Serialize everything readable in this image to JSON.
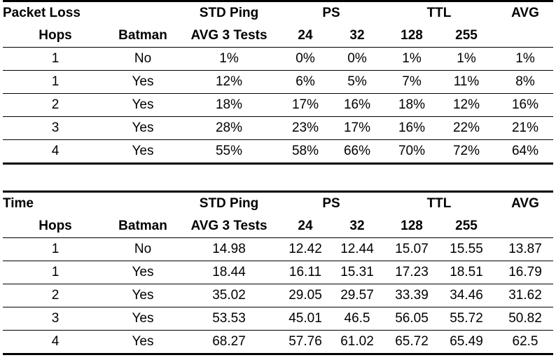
{
  "tables": [
    {
      "title": "Packet Loss",
      "header1": {
        "std_ping": "STD Ping",
        "ps": "PS",
        "ttl": "TTL",
        "avg": "AVG"
      },
      "header2": {
        "hops": "Hops",
        "batman": "Batman",
        "avg3": "AVG 3 Tests",
        "ps24": "24",
        "ps32": "32",
        "ttl128": "128",
        "ttl255": "255"
      },
      "rows": [
        {
          "hops": "1",
          "batman": "No",
          "std": "1%",
          "ps24": "0%",
          "ps32": "0%",
          "ttl128": "1%",
          "ttl255": "1%",
          "avg": "1%"
        },
        {
          "hops": "1",
          "batman": "Yes",
          "std": "12%",
          "ps24": "6%",
          "ps32": "5%",
          "ttl128": "7%",
          "ttl255": "11%",
          "avg": "8%"
        },
        {
          "hops": "2",
          "batman": "Yes",
          "std": "18%",
          "ps24": "17%",
          "ps32": "16%",
          "ttl128": "18%",
          "ttl255": "12%",
          "avg": "16%"
        },
        {
          "hops": "3",
          "batman": "Yes",
          "std": "28%",
          "ps24": "23%",
          "ps32": "17%",
          "ttl128": "16%",
          "ttl255": "22%",
          "avg": "21%"
        },
        {
          "hops": "4",
          "batman": "Yes",
          "std": "55%",
          "ps24": "58%",
          "ps32": "66%",
          "ttl128": "70%",
          "ttl255": "72%",
          "avg": "64%"
        }
      ]
    },
    {
      "title": "Time",
      "header1": {
        "std_ping": "STD Ping",
        "ps": "PS",
        "ttl": "TTL",
        "avg": "AVG"
      },
      "header2": {
        "hops": "Hops",
        "batman": "Batman",
        "avg3": "AVG 3 Tests",
        "ps24": "24",
        "ps32": "32",
        "ttl128": "128",
        "ttl255": "255"
      },
      "rows": [
        {
          "hops": "1",
          "batman": "No",
          "std": "14.98",
          "ps24": "12.42",
          "ps32": "12.44",
          "ttl128": "15.07",
          "ttl255": "15.55",
          "avg": "13.87"
        },
        {
          "hops": "1",
          "batman": "Yes",
          "std": "18.44",
          "ps24": "16.11",
          "ps32": "15.31",
          "ttl128": "17.23",
          "ttl255": "18.51",
          "avg": "16.79"
        },
        {
          "hops": "2",
          "batman": "Yes",
          "std": "35.02",
          "ps24": "29.05",
          "ps32": "29.57",
          "ttl128": "33.39",
          "ttl255": "34.46",
          "avg": "31.62"
        },
        {
          "hops": "3",
          "batman": "Yes",
          "std": "53.53",
          "ps24": "45.01",
          "ps32": "46.5",
          "ttl128": "56.05",
          "ttl255": "55.72",
          "avg": "50.82"
        },
        {
          "hops": "4",
          "batman": "Yes",
          "std": "68.27",
          "ps24": "57.76",
          "ps32": "61.02",
          "ttl128": "65.72",
          "ttl255": "65.49",
          "avg": "62.5"
        }
      ]
    }
  ]
}
